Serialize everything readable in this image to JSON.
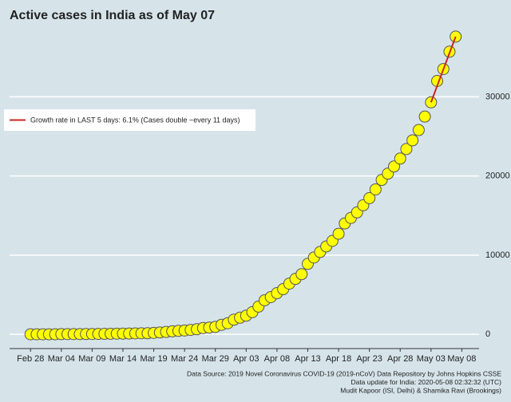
{
  "chart_data": {
    "type": "scatter",
    "title": "Active cases in India as of May 07",
    "x": [
      0,
      1,
      2,
      3,
      4,
      5,
      6,
      7,
      8,
      9,
      10,
      11,
      12,
      13,
      14,
      15,
      16,
      17,
      18,
      19,
      20,
      21,
      22,
      23,
      24,
      25,
      26,
      27,
      28,
      29,
      30,
      31,
      32,
      33,
      34,
      35,
      36,
      37,
      38,
      39,
      40,
      41,
      42,
      43,
      44,
      45,
      46,
      47,
      48,
      49,
      50,
      51,
      52,
      53,
      54,
      55,
      56,
      57,
      58,
      59,
      60,
      61,
      62,
      63,
      64,
      65,
      66,
      67,
      68,
      69
    ],
    "values": [
      3,
      3,
      3,
      5,
      5,
      25,
      27,
      28,
      31,
      36,
      40,
      53,
      59,
      69,
      78,
      88,
      100,
      115,
      127,
      135,
      177,
      233,
      300,
      373,
      440,
      480,
      555,
      640,
      790,
      850,
      940,
      1200,
      1400,
      1850,
      2100,
      2350,
      2800,
      3500,
      4300,
      4700,
      5200,
      5700,
      6400,
      7000,
      7600,
      8900,
      9700,
      10400,
      11100,
      11800,
      12700,
      14000,
      14700,
      15400,
      16300,
      17200,
      18300,
      19500,
      20300,
      21200,
      22200,
      23400,
      24500,
      25800,
      27500,
      29300,
      32000,
      33500,
      35700,
      37600
    ],
    "color": "#ffff00",
    "trend": {
      "name": "Growth rate in LAST 5 days: 6.1% (Cases double ~every 11 days)",
      "color": "#cc2222",
      "x": [
        65,
        69
      ],
      "values": [
        29300,
        37600
      ]
    },
    "xlim": [
      -3.4,
      72.8
    ],
    "xticks": [
      {
        "value": 0,
        "label": "Feb 28"
      },
      {
        "value": 5,
        "label": "Mar 04"
      },
      {
        "value": 10,
        "label": "Mar 09"
      },
      {
        "value": 15,
        "label": "Mar 14"
      },
      {
        "value": 20,
        "label": "Mar 19"
      },
      {
        "value": 25,
        "label": "Mar 24"
      },
      {
        "value": 30,
        "label": "Mar 29"
      },
      {
        "value": 35,
        "label": "Apr 03"
      },
      {
        "value": 40,
        "label": "Apr 08"
      },
      {
        "value": 45,
        "label": "Apr 13"
      },
      {
        "value": 50,
        "label": "Apr 18"
      },
      {
        "value": 55,
        "label": "Apr 23"
      },
      {
        "value": 60,
        "label": "Apr 28"
      },
      {
        "value": 65,
        "label": "May 03"
      },
      {
        "value": 70,
        "label": "May 08"
      }
    ],
    "ylim": [
      -1800,
      38700
    ],
    "yticks": [
      0,
      10000,
      20000,
      30000
    ],
    "grid": true,
    "legend": "upper left",
    "captions": [
      "Data Source: 2019 Novel Coronavirus COVID-19 (2019-nCoV) Data Repository by Johns Hopkins CSSE",
      "Data update for India: 2020-05-08 02:32:32 (UTC)",
      "Mudit Kapoor (ISI, Delhi) & Shamika Ravi (Brookings)"
    ]
  }
}
